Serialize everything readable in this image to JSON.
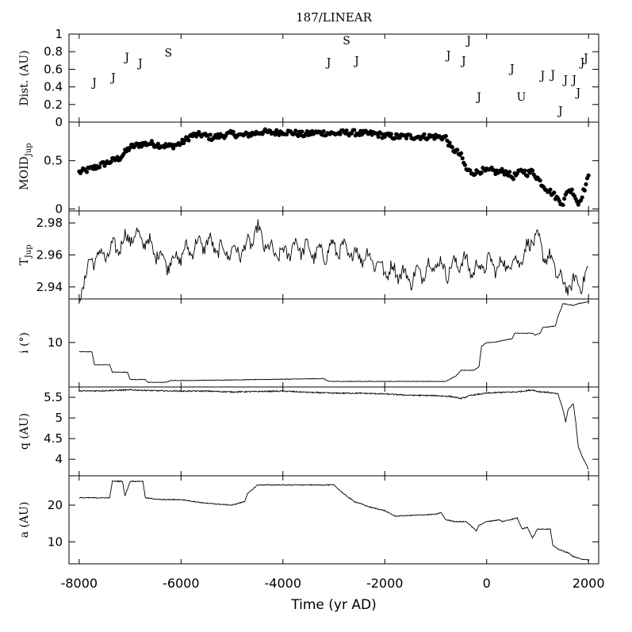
{
  "figure": {
    "title": "187/LINEAR",
    "xlabel": "Time (yr AD)",
    "xlim": [
      -8200,
      2200
    ],
    "xticks": [
      -8000,
      -6000,
      -4000,
      -2000,
      0,
      2000
    ],
    "xtick_labels": [
      "-8000",
      "-6000",
      "-4000",
      "-2000",
      "0",
      "2000"
    ]
  },
  "chart_data": [
    {
      "id": "dist",
      "type": "scatter",
      "ylabel": "Dist. (AU)",
      "ylim": [
        0,
        1
      ],
      "yticks": [
        0,
        0.2,
        0.4,
        0.6,
        0.8,
        1
      ],
      "ytick_labels": [
        "0",
        "0.2",
        "0.4",
        "0.6",
        "0.8",
        "1"
      ],
      "encounters": [
        {
          "t": -7700,
          "d": 0.45,
          "planet": "J"
        },
        {
          "t": -7330,
          "d": 0.51,
          "planet": "J"
        },
        {
          "t": -7060,
          "d": 0.74,
          "planet": "J"
        },
        {
          "t": -6800,
          "d": 0.67,
          "planet": "J"
        },
        {
          "t": -6250,
          "d": 0.79,
          "planet": "S"
        },
        {
          "t": -3100,
          "d": 0.68,
          "planet": "J"
        },
        {
          "t": -2750,
          "d": 0.93,
          "planet": "S"
        },
        {
          "t": -2550,
          "d": 0.7,
          "planet": "J"
        },
        {
          "t": -750,
          "d": 0.76,
          "planet": "J"
        },
        {
          "t": -450,
          "d": 0.7,
          "planet": "J"
        },
        {
          "t": -350,
          "d": 0.93,
          "planet": "J"
        },
        {
          "t": -150,
          "d": 0.29,
          "planet": "J"
        },
        {
          "t": 500,
          "d": 0.61,
          "planet": "J"
        },
        {
          "t": 680,
          "d": 0.29,
          "planet": "U"
        },
        {
          "t": 1100,
          "d": 0.53,
          "planet": "J"
        },
        {
          "t": 1300,
          "d": 0.54,
          "planet": "J"
        },
        {
          "t": 1450,
          "d": 0.13,
          "planet": "J"
        },
        {
          "t": 1550,
          "d": 0.48,
          "planet": "J"
        },
        {
          "t": 1720,
          "d": 0.48,
          "planet": "J"
        },
        {
          "t": 1800,
          "d": 0.34,
          "planet": "J"
        },
        {
          "t": 1880,
          "d": 0.68,
          "planet": "J"
        },
        {
          "t": 1950,
          "d": 0.73,
          "planet": "J"
        }
      ]
    },
    {
      "id": "moid",
      "type": "scatter",
      "ylabel_main": "MOID",
      "ylabel_sub": "Jup",
      "ylim": [
        -0.02,
        0.9
      ],
      "yticks": [
        0,
        0.5
      ],
      "ytick_labels": [
        "0",
        "0.5"
      ],
      "x_points": [
        -8000,
        -7800,
        -7600,
        -7400,
        -7200,
        -7000,
        -6800,
        -6600,
        -6400,
        -6200,
        -6000,
        -5800,
        -5600,
        -5400,
        -5200,
        -5000,
        -4800,
        -4600,
        -4400,
        -4200,
        -4000,
        -3800,
        -3600,
        -3400,
        -3200,
        -3000,
        -2800,
        -2600,
        -2400,
        -2200,
        -2000,
        -1800,
        -1600,
        -1400,
        -1200,
        -1000,
        -800,
        -700,
        -600,
        -500,
        -400,
        -300,
        -200,
        -100,
        0,
        100,
        200,
        300,
        400,
        500,
        600,
        700,
        800,
        900,
        1000,
        1100,
        1200,
        1300,
        1400,
        1500,
        1600,
        1700,
        1800,
        1900,
        2000
      ],
      "y_points": [
        0.38,
        0.41,
        0.45,
        0.49,
        0.53,
        0.64,
        0.67,
        0.68,
        0.66,
        0.65,
        0.68,
        0.76,
        0.77,
        0.74,
        0.76,
        0.78,
        0.76,
        0.78,
        0.8,
        0.79,
        0.8,
        0.79,
        0.77,
        0.79,
        0.79,
        0.78,
        0.79,
        0.79,
        0.78,
        0.78,
        0.76,
        0.75,
        0.75,
        0.75,
        0.75,
        0.75,
        0.74,
        0.63,
        0.6,
        0.55,
        0.41,
        0.38,
        0.38,
        0.4,
        0.39,
        0.4,
        0.38,
        0.39,
        0.38,
        0.33,
        0.36,
        0.4,
        0.37,
        0.39,
        0.32,
        0.25,
        0.2,
        0.16,
        0.1,
        0.06,
        0.2,
        0.18,
        0.05,
        0.18,
        0.33
      ]
    },
    {
      "id": "tjup",
      "type": "line",
      "ylabel_main": "T",
      "ylabel_sub": "Jup",
      "ylim": [
        2.9325,
        2.9875
      ],
      "yticks": [
        2.94,
        2.96,
        2.98
      ],
      "ytick_labels": [
        "2.94",
        "2.96",
        "2.98"
      ],
      "x": [
        -8000,
        -7750,
        -7500,
        -7250,
        -7000,
        -6750,
        -6500,
        -6250,
        -6000,
        -5750,
        -5500,
        -5250,
        -5000,
        -4750,
        -4500,
        -4250,
        -4000,
        -3750,
        -3500,
        -3250,
        -3000,
        -2750,
        -2500,
        -2250,
        -2000,
        -1750,
        -1500,
        -1250,
        -1000,
        -750,
        -500,
        -250,
        0,
        250,
        500,
        750,
        900,
        1000,
        1200,
        1400,
        1500,
        1700,
        1900,
        2000
      ],
      "y": [
        2.935,
        2.958,
        2.96,
        2.965,
        2.972,
        2.97,
        2.962,
        2.955,
        2.96,
        2.965,
        2.968,
        2.963,
        2.962,
        2.963,
        2.975,
        2.962,
        2.96,
        2.966,
        2.963,
        2.96,
        2.965,
        2.962,
        2.96,
        2.958,
        2.95,
        2.95,
        2.945,
        2.95,
        2.955,
        2.95,
        2.957,
        2.95,
        2.955,
        2.953,
        2.955,
        2.96,
        2.972,
        2.968,
        2.958,
        2.95,
        2.94,
        2.942,
        2.944,
        2.948
      ],
      "wiggle": 0.008
    },
    {
      "id": "incl",
      "type": "line",
      "ylabel": "i (°)",
      "ylim": [
        7.6,
        12.35
      ],
      "yticks": [
        10
      ],
      "ytick_labels": [
        "10"
      ],
      "x": [
        -8000,
        -7750,
        -7700,
        -7400,
        -7350,
        -7050,
        -7000,
        -6700,
        -6650,
        -6300,
        -6200,
        -5800,
        -3200,
        -3100,
        -800,
        -600,
        -500,
        -250,
        -150,
        -100,
        0,
        100,
        500,
        550,
        900,
        950,
        1050,
        1100,
        1350,
        1400,
        1500,
        1700,
        1800,
        2000
      ],
      "y": [
        9.5,
        9.5,
        8.8,
        8.8,
        8.4,
        8.4,
        8.0,
        8.0,
        7.85,
        7.85,
        7.95,
        7.95,
        8.05,
        7.9,
        7.9,
        8.2,
        8.5,
        8.5,
        8.7,
        9.8,
        10.0,
        10.0,
        10.2,
        10.5,
        10.5,
        10.4,
        10.5,
        10.8,
        10.9,
        11.4,
        12.1,
        12.0,
        12.1,
        12.2
      ],
      "wiggle": 0.03
    },
    {
      "id": "q",
      "type": "line",
      "ylabel": "q (AU)",
      "ylim": [
        3.6,
        5.75
      ],
      "yticks": [
        4,
        4.5,
        5,
        5.5
      ],
      "ytick_labels": [
        "4",
        "4.5",
        "5",
        "5.5"
      ],
      "x": [
        -8000,
        -7500,
        -7000,
        -6500,
        -6000,
        -5500,
        -5000,
        -4500,
        -4000,
        -3500,
        -3000,
        -2500,
        -2000,
        -1500,
        -1000,
        -700,
        -500,
        -300,
        0,
        300,
        600,
        900,
        1000,
        1200,
        1400,
        1500,
        1550,
        1600,
        1700,
        1750,
        1800,
        1900,
        1950,
        2000
      ],
      "y": [
        5.65,
        5.66,
        5.68,
        5.66,
        5.65,
        5.65,
        5.63,
        5.64,
        5.65,
        5.62,
        5.6,
        5.6,
        5.58,
        5.55,
        5.54,
        5.52,
        5.47,
        5.55,
        5.6,
        5.62,
        5.63,
        5.68,
        5.64,
        5.62,
        5.58,
        5.2,
        4.9,
        5.2,
        5.35,
        4.9,
        4.3,
        4.0,
        3.9,
        3.75
      ],
      "wiggle": 0.03
    },
    {
      "id": "a",
      "type": "line",
      "ylabel": "a (AU)",
      "ylim": [
        4,
        28
      ],
      "yticks": [
        10,
        20
      ],
      "ytick_labels": [
        "10",
        "20"
      ],
      "x": [
        -8000,
        -7600,
        -7400,
        -7350,
        -7150,
        -7100,
        -7000,
        -6750,
        -6700,
        -6400,
        -6000,
        -5500,
        -5000,
        -4750,
        -4700,
        -4500,
        -3000,
        -2800,
        -2600,
        -2300,
        -2000,
        -1800,
        -1000,
        -900,
        -800,
        -600,
        -400,
        -200,
        -150,
        0,
        250,
        300,
        600,
        700,
        800,
        900,
        1000,
        1250,
        1300,
        1400,
        1600,
        1700,
        1800,
        2000
      ],
      "y": [
        22,
        22,
        22,
        26.5,
        26.5,
        22.5,
        26.5,
        26.5,
        22,
        21.5,
        21.5,
        20.5,
        20,
        21,
        23,
        25.5,
        25.5,
        23,
        21,
        19.5,
        18.5,
        17,
        17.5,
        18,
        16,
        15.5,
        15.5,
        13,
        14.5,
        15.5,
        16,
        15.5,
        16.5,
        13.5,
        14,
        11,
        13.5,
        13.5,
        9,
        8,
        7,
        6,
        5.5,
        5
      ],
      "wiggle": 0.25
    }
  ]
}
